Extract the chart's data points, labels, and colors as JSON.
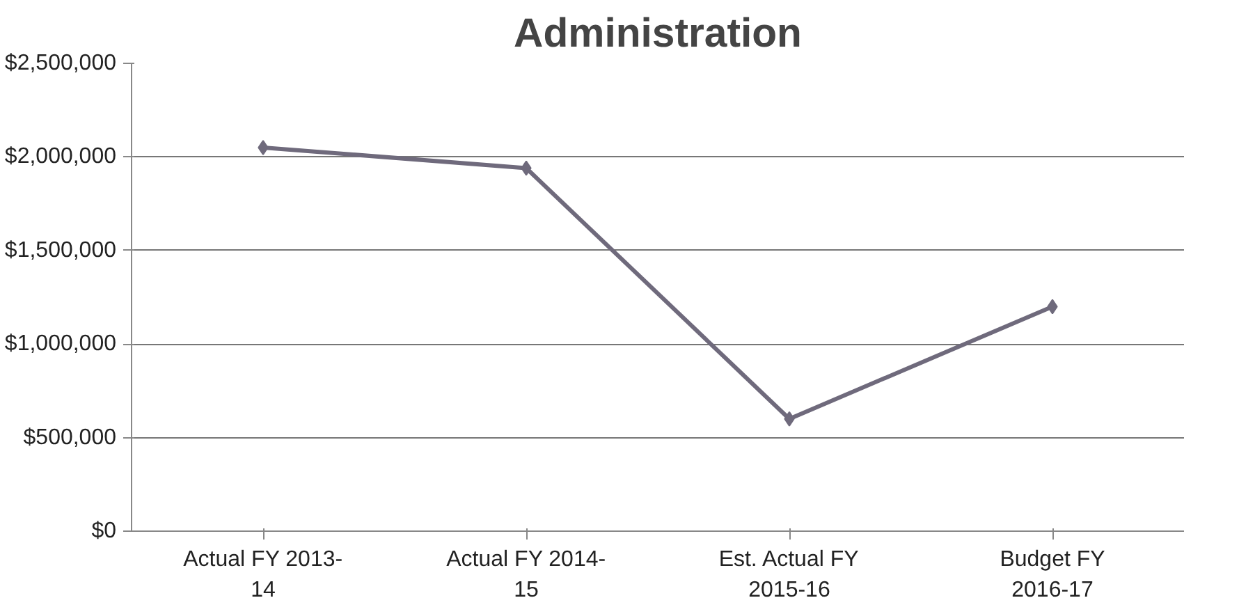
{
  "chart_data": {
    "type": "line",
    "title": "Administration",
    "categories": [
      "Actual FY 2013-\n14",
      "Actual FY 2014-\n15",
      "Est. Actual FY\n2015-16",
      "Budget FY\n2016-17"
    ],
    "series": [
      {
        "color": "#6f6a7c",
        "values": [
          2050000,
          1940000,
          600000,
          1200000
        ]
      }
    ],
    "ylim": [
      0,
      2500000
    ],
    "yticks": [
      {
        "value": 0,
        "label": "$0"
      },
      {
        "value": 500000,
        "label": "$500,000"
      },
      {
        "value": 1000000,
        "label": "$1,000,000"
      },
      {
        "value": 1500000,
        "label": "$1,500,000"
      },
      {
        "value": 2000000,
        "label": "$2,000,000"
      },
      {
        "value": 2500000,
        "label": "$2,500,000"
      }
    ],
    "grid": "y",
    "marker": "diamond",
    "line_style": "solid"
  }
}
